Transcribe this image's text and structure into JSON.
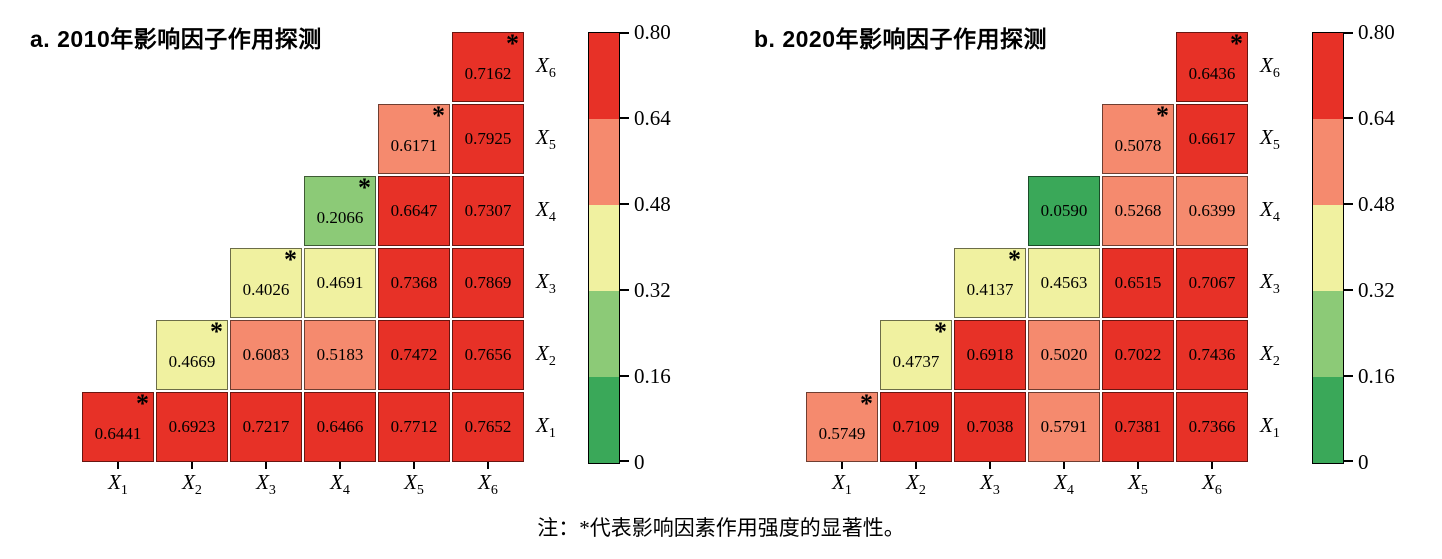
{
  "note": "注：*代表影响因素作用强度的显著性。",
  "color_scale": {
    "breaks": [
      0.16,
      0.32,
      0.48,
      0.64
    ],
    "colors": [
      "#3aa859",
      "#8cca77",
      "#f0f1a0",
      "#f58a6e",
      "#e73127"
    ]
  },
  "colorbar": {
    "tick_labels_top_to_bottom": [
      "0.80",
      "0.64",
      "0.48",
      "0.32",
      "0.16",
      "0"
    ],
    "band_colors_top_to_bottom": [
      "#e73127",
      "#f58a6e",
      "#f0f1a0",
      "#8cca77",
      "#3aa859"
    ]
  },
  "chart_data": [
    {
      "type": "heatmap",
      "title": "a. 2010年影响因子作用探测",
      "x_tick_labels": [
        "X1",
        "X2",
        "X3",
        "X4",
        "X5",
        "X6"
      ],
      "y_tick_labels_top_to_bottom": [
        "X6",
        "X5",
        "X4",
        "X3",
        "X2",
        "X1"
      ],
      "value_range": [
        0,
        0.8
      ],
      "rows": [
        {
          "y": "X6",
          "cells": [
            {
              "x": "X6",
              "v": "0.7162",
              "sig": true
            }
          ]
        },
        {
          "y": "X5",
          "cells": [
            {
              "x": "X5",
              "v": "0.6171",
              "sig": true
            },
            {
              "x": "X6",
              "v": "0.7925"
            }
          ]
        },
        {
          "y": "X4",
          "cells": [
            {
              "x": "X4",
              "v": "0.2066",
              "sig": true
            },
            {
              "x": "X5",
              "v": "0.6647"
            },
            {
              "x": "X6",
              "v": "0.7307"
            }
          ]
        },
        {
          "y": "X3",
          "cells": [
            {
              "x": "X3",
              "v": "0.4026",
              "sig": true
            },
            {
              "x": "X4",
              "v": "0.4691"
            },
            {
              "x": "X5",
              "v": "0.7368"
            },
            {
              "x": "X6",
              "v": "0.7869"
            }
          ]
        },
        {
          "y": "X2",
          "cells": [
            {
              "x": "X2",
              "v": "0.4669",
              "sig": true
            },
            {
              "x": "X3",
              "v": "0.6083"
            },
            {
              "x": "X4",
              "v": "0.5183"
            },
            {
              "x": "X5",
              "v": "0.7472"
            },
            {
              "x": "X6",
              "v": "0.7656"
            }
          ]
        },
        {
          "y": "X1",
          "cells": [
            {
              "x": "X1",
              "v": "0.6441",
              "sig": true
            },
            {
              "x": "X2",
              "v": "0.6923"
            },
            {
              "x": "X3",
              "v": "0.7217"
            },
            {
              "x": "X4",
              "v": "0.6466"
            },
            {
              "x": "X5",
              "v": "0.7712"
            },
            {
              "x": "X6",
              "v": "0.7652"
            }
          ]
        }
      ]
    },
    {
      "type": "heatmap",
      "title": "b. 2020年影响因子作用探测",
      "x_tick_labels": [
        "X1",
        "X2",
        "X3",
        "X4",
        "X5",
        "X6"
      ],
      "y_tick_labels_top_to_bottom": [
        "X6",
        "X5",
        "X4",
        "X3",
        "X2",
        "X1"
      ],
      "value_range": [
        0,
        0.8
      ],
      "rows": [
        {
          "y": "X6",
          "cells": [
            {
              "x": "X6",
              "v": "0.6436",
              "sig": true
            }
          ]
        },
        {
          "y": "X5",
          "cells": [
            {
              "x": "X5",
              "v": "0.5078",
              "sig": true
            },
            {
              "x": "X6",
              "v": "0.6617"
            }
          ]
        },
        {
          "y": "X4",
          "cells": [
            {
              "x": "X4",
              "v": "0.0590"
            },
            {
              "x": "X5",
              "v": "0.5268"
            },
            {
              "x": "X6",
              "v": "0.6399"
            }
          ]
        },
        {
          "y": "X3",
          "cells": [
            {
              "x": "X3",
              "v": "0.4137",
              "sig": true
            },
            {
              "x": "X4",
              "v": "0.4563"
            },
            {
              "x": "X5",
              "v": "0.6515"
            },
            {
              "x": "X6",
              "v": "0.7067"
            }
          ]
        },
        {
          "y": "X2",
          "cells": [
            {
              "x": "X2",
              "v": "0.4737",
              "sig": true
            },
            {
              "x": "X3",
              "v": "0.6918"
            },
            {
              "x": "X4",
              "v": "0.5020"
            },
            {
              "x": "X5",
              "v": "0.7022"
            },
            {
              "x": "X6",
              "v": "0.7436"
            }
          ]
        },
        {
          "y": "X1",
          "cells": [
            {
              "x": "X1",
              "v": "0.5749",
              "sig": true
            },
            {
              "x": "X2",
              "v": "0.7109"
            },
            {
              "x": "X3",
              "v": "0.7038"
            },
            {
              "x": "X4",
              "v": "0.5791"
            },
            {
              "x": "X5",
              "v": "0.7381"
            },
            {
              "x": "X6",
              "v": "0.7366"
            }
          ]
        }
      ]
    }
  ]
}
